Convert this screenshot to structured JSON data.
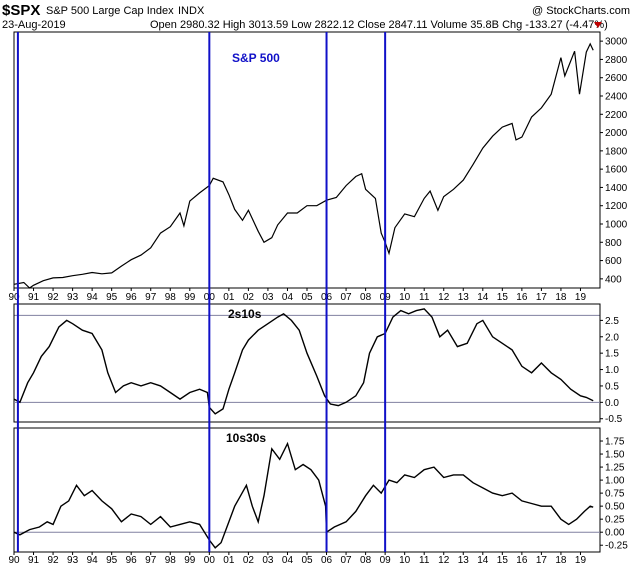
{
  "header": {
    "symbol": "$SPX",
    "name": "S&P 500 Large Cap Index",
    "exchange": "INDX",
    "date": "23-Aug-2019",
    "ohlc": "Open 2980.32  High 3013.59  Low 2822.12  Close 2847.11  Volume 35.8B  Chg -133.27 (-4.47%)",
    "watermark": "@ StockCharts.com"
  },
  "colors": {
    "marker_lines": "#1010c8",
    "zero_line": "#8080a0",
    "series": "#000000"
  },
  "chart_data": [
    {
      "type": "line",
      "title": "S&P 500",
      "yscale": "log",
      "ylim": [
        300,
        3100
      ],
      "y_ticks": [
        400,
        600,
        800,
        1000,
        1200,
        1400,
        1600,
        1800,
        2000,
        2200,
        2400,
        2600,
        2800,
        3000
      ],
      "x_ticks": [
        "90",
        "91",
        "92",
        "93",
        "94",
        "95",
        "96",
        "97",
        "98",
        "99",
        "00",
        "01",
        "02",
        "03",
        "04",
        "05",
        "06",
        "07",
        "08",
        "09",
        "10",
        "11",
        "12",
        "13",
        "14",
        "15",
        "16",
        "17",
        "18",
        "19"
      ],
      "x": [
        1990.0,
        1990.5,
        1990.8,
        1991.0,
        1991.5,
        1992.0,
        1992.5,
        1993.0,
        1993.5,
        1994.0,
        1994.5,
        1995.0,
        1995.5,
        1996.0,
        1996.5,
        1997.0,
        1997.5,
        1998.0,
        1998.5,
        1998.7,
        1999.0,
        1999.5,
        2000.0,
        2000.2,
        2000.7,
        2001.0,
        2001.3,
        2001.7,
        2002.0,
        2002.5,
        2002.8,
        2003.2,
        2003.5,
        2004.0,
        2004.5,
        2005.0,
        2005.5,
        2006.0,
        2006.5,
        2007.0,
        2007.5,
        2007.8,
        2008.0,
        2008.5,
        2008.8,
        2009.0,
        2009.2,
        2009.5,
        2010.0,
        2010.5,
        2011.0,
        2011.3,
        2011.7,
        2012.0,
        2012.5,
        2013.0,
        2013.5,
        2014.0,
        2014.5,
        2015.0,
        2015.5,
        2015.7,
        2016.0,
        2016.5,
        2017.0,
        2017.5,
        2018.0,
        2018.2,
        2018.7,
        2018.95,
        2019.3,
        2019.5,
        2019.65
      ],
      "values": [
        340,
        360,
        300,
        330,
        380,
        410,
        415,
        435,
        450,
        470,
        455,
        465,
        540,
        610,
        660,
        740,
        900,
        970,
        1120,
        980,
        1250,
        1340,
        1420,
        1500,
        1460,
        1320,
        1160,
        1040,
        1150,
        920,
        800,
        850,
        990,
        1120,
        1120,
        1200,
        1200,
        1260,
        1290,
        1420,
        1520,
        1550,
        1380,
        1280,
        900,
        800,
        680,
        960,
        1110,
        1080,
        1280,
        1360,
        1150,
        1300,
        1380,
        1480,
        1650,
        1830,
        1960,
        2060,
        2100,
        1920,
        1950,
        2170,
        2270,
        2420,
        2820,
        2620,
        2890,
        2420,
        2880,
        2970,
        2900
      ]
    },
    {
      "type": "line",
      "title": "2s10s",
      "ylim": [
        -0.6,
        3.0
      ],
      "y_ticks": [
        -0.5,
        0.0,
        0.5,
        1.0,
        1.5,
        2.0,
        2.5
      ],
      "y_tick_labels": [
        "-0.5",
        "0.0",
        "0.5",
        "1.0",
        "1.5",
        "2.0",
        "2.5"
      ],
      "x": [
        1990.0,
        1990.3,
        1990.7,
        1991.0,
        1991.4,
        1991.8,
        1992.3,
        1992.7,
        1993.0,
        1993.5,
        1994.0,
        1994.5,
        1994.8,
        1995.2,
        1995.6,
        1996.0,
        1996.5,
        1997.0,
        1997.5,
        1998.0,
        1998.5,
        1999.0,
        1999.5,
        1999.9,
        2000.0,
        2000.3,
        2000.7,
        2001.0,
        2001.3,
        2001.7,
        2002.0,
        2002.5,
        2003.0,
        2003.5,
        2003.8,
        2004.2,
        2004.6,
        2005.0,
        2005.5,
        2005.9,
        2006.2,
        2006.6,
        2007.0,
        2007.5,
        2007.9,
        2008.2,
        2008.6,
        2009.0,
        2009.4,
        2009.8,
        2010.2,
        2010.6,
        2011.0,
        2011.4,
        2011.8,
        2012.2,
        2012.7,
        2013.2,
        2013.7,
        2014.0,
        2014.5,
        2015.0,
        2015.5,
        2016.0,
        2016.5,
        2017.0,
        2017.5,
        2018.0,
        2018.5,
        2019.0,
        2019.3,
        2019.65
      ],
      "values": [
        0.1,
        0.0,
        0.6,
        0.9,
        1.4,
        1.7,
        2.3,
        2.5,
        2.4,
        2.2,
        2.1,
        1.6,
        0.9,
        0.3,
        0.5,
        0.6,
        0.5,
        0.6,
        0.5,
        0.3,
        0.1,
        0.3,
        0.4,
        0.3,
        -0.15,
        -0.35,
        -0.2,
        0.4,
        0.9,
        1.6,
        1.9,
        2.2,
        2.4,
        2.6,
        2.7,
        2.5,
        2.2,
        1.5,
        0.8,
        0.2,
        -0.05,
        -0.1,
        0.0,
        0.2,
        0.6,
        1.5,
        2.0,
        2.1,
        2.6,
        2.8,
        2.7,
        2.8,
        2.85,
        2.6,
        2.0,
        2.2,
        1.7,
        1.8,
        2.4,
        2.5,
        2.0,
        1.8,
        1.6,
        1.1,
        0.9,
        1.2,
        0.9,
        0.7,
        0.4,
        0.2,
        0.15,
        0.05
      ]
    },
    {
      "type": "line",
      "title": "10s30s",
      "ylim": [
        -0.38,
        2.0
      ],
      "y_ticks": [
        -0.25,
        0.0,
        0.25,
        0.5,
        0.75,
        1.0,
        1.25,
        1.5,
        1.75
      ],
      "y_tick_labels": [
        "-0.25",
        "0.00",
        "0.25",
        "0.50",
        "0.75",
        "1.00",
        "1.25",
        "1.50",
        "1.75"
      ],
      "x": [
        1990.0,
        1990.3,
        1990.8,
        1991.3,
        1991.7,
        1992.0,
        1992.4,
        1992.8,
        1993.2,
        1993.6,
        1994.0,
        1994.5,
        1995.0,
        1995.5,
        1996.0,
        1996.5,
        1997.0,
        1997.5,
        1998.0,
        1998.5,
        1999.0,
        1999.5,
        2000.0,
        2000.3,
        2000.6,
        2001.0,
        2001.3,
        2001.6,
        2001.9,
        2002.2,
        2002.5,
        2002.8,
        2003.2,
        2003.6,
        2004.0,
        2004.4,
        2004.8,
        2005.2,
        2005.6,
        2005.95,
        2006.0,
        2006.4,
        2007.0,
        2007.5,
        2008.0,
        2008.4,
        2008.8,
        2009.2,
        2009.6,
        2010.0,
        2010.5,
        2011.0,
        2011.5,
        2012.0,
        2012.5,
        2013.0,
        2013.5,
        2014.0,
        2014.5,
        2015.0,
        2015.5,
        2016.0,
        2016.5,
        2017.0,
        2017.5,
        2018.0,
        2018.4,
        2018.8,
        2019.2,
        2019.5,
        2019.65
      ],
      "values": [
        0.0,
        -0.05,
        0.05,
        0.1,
        0.2,
        0.15,
        0.5,
        0.6,
        0.9,
        0.7,
        0.8,
        0.6,
        0.45,
        0.2,
        0.35,
        0.3,
        0.15,
        0.3,
        0.1,
        0.15,
        0.2,
        0.15,
        -0.15,
        -0.3,
        -0.2,
        0.2,
        0.5,
        0.7,
        0.9,
        0.5,
        0.2,
        0.7,
        1.6,
        1.4,
        1.7,
        1.2,
        1.3,
        1.2,
        1.0,
        0.5,
        0.0,
        0.1,
        0.2,
        0.4,
        0.7,
        0.9,
        0.75,
        1.0,
        0.95,
        1.1,
        1.05,
        1.2,
        1.25,
        1.05,
        1.1,
        1.1,
        0.95,
        0.85,
        0.75,
        0.7,
        0.75,
        0.6,
        0.55,
        0.5,
        0.5,
        0.25,
        0.15,
        0.25,
        0.4,
        0.5,
        0.48
      ]
    }
  ],
  "marker_years": [
    1990.2,
    2000.0,
    2006.0,
    2009.0
  ]
}
